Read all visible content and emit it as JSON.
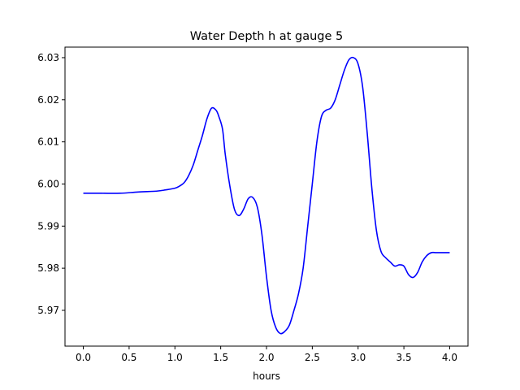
{
  "chart_data": {
    "type": "line",
    "title": "Water Depth h at gauge 5",
    "xlabel": "hours",
    "ylabel": "",
    "xlim": [
      -0.2,
      4.2
    ],
    "ylim": [
      5.9615,
      6.0325
    ],
    "xticks": [
      0.0,
      0.5,
      1.0,
      1.5,
      2.0,
      2.5,
      3.0,
      3.5,
      4.0
    ],
    "xtick_labels": [
      "0.0",
      "0.5",
      "1.0",
      "1.5",
      "2.0",
      "2.5",
      "3.0",
      "3.5",
      "4.0"
    ],
    "yticks": [
      5.97,
      5.98,
      5.99,
      6.0,
      6.01,
      6.02,
      6.03
    ],
    "ytick_labels": [
      "5.97",
      "5.98",
      "5.99",
      "6.00",
      "6.01",
      "6.02",
      "6.03"
    ],
    "grid": false,
    "legend": "none",
    "series": [
      {
        "color": "#0000ff",
        "x": [
          0.0,
          0.2,
          0.4,
          0.6,
          0.8,
          0.9,
          1.0,
          1.05,
          1.1,
          1.15,
          1.2,
          1.25,
          1.3,
          1.35,
          1.4,
          1.45,
          1.48,
          1.52,
          1.55,
          1.6,
          1.65,
          1.7,
          1.75,
          1.8,
          1.85,
          1.9,
          1.95,
          2.0,
          2.05,
          2.1,
          2.15,
          2.2,
          2.25,
          2.3,
          2.35,
          2.4,
          2.45,
          2.5,
          2.55,
          2.6,
          2.65,
          2.7,
          2.75,
          2.8,
          2.85,
          2.9,
          2.95,
          3.0,
          3.05,
          3.1,
          3.15,
          3.2,
          3.25,
          3.3,
          3.35,
          3.4,
          3.45,
          3.5,
          3.55,
          3.6,
          3.65,
          3.7,
          3.75,
          3.8,
          3.85,
          3.9,
          3.95,
          4.0
        ],
        "y": [
          5.9978,
          5.9978,
          5.9978,
          5.9981,
          5.9983,
          5.9986,
          5.999,
          5.9995,
          6.0003,
          6.002,
          6.0045,
          6.008,
          6.0115,
          6.0155,
          6.018,
          6.0175,
          6.016,
          6.013,
          6.007,
          5.9995,
          5.994,
          5.9925,
          5.994,
          5.9965,
          5.9968,
          5.9945,
          5.988,
          5.978,
          5.97,
          5.966,
          5.9645,
          5.965,
          5.9665,
          5.97,
          5.974,
          5.98,
          5.99,
          6.0,
          6.01,
          6.016,
          6.0175,
          6.018,
          6.02,
          6.0235,
          6.027,
          6.0295,
          6.03,
          6.0285,
          6.023,
          6.012,
          5.999,
          5.989,
          5.984,
          5.9825,
          5.9815,
          5.9805,
          5.9808,
          5.9805,
          5.9785,
          5.9778,
          5.979,
          5.9815,
          5.983,
          5.9837,
          5.9837,
          5.9837,
          5.9837,
          5.9837
        ]
      }
    ]
  }
}
